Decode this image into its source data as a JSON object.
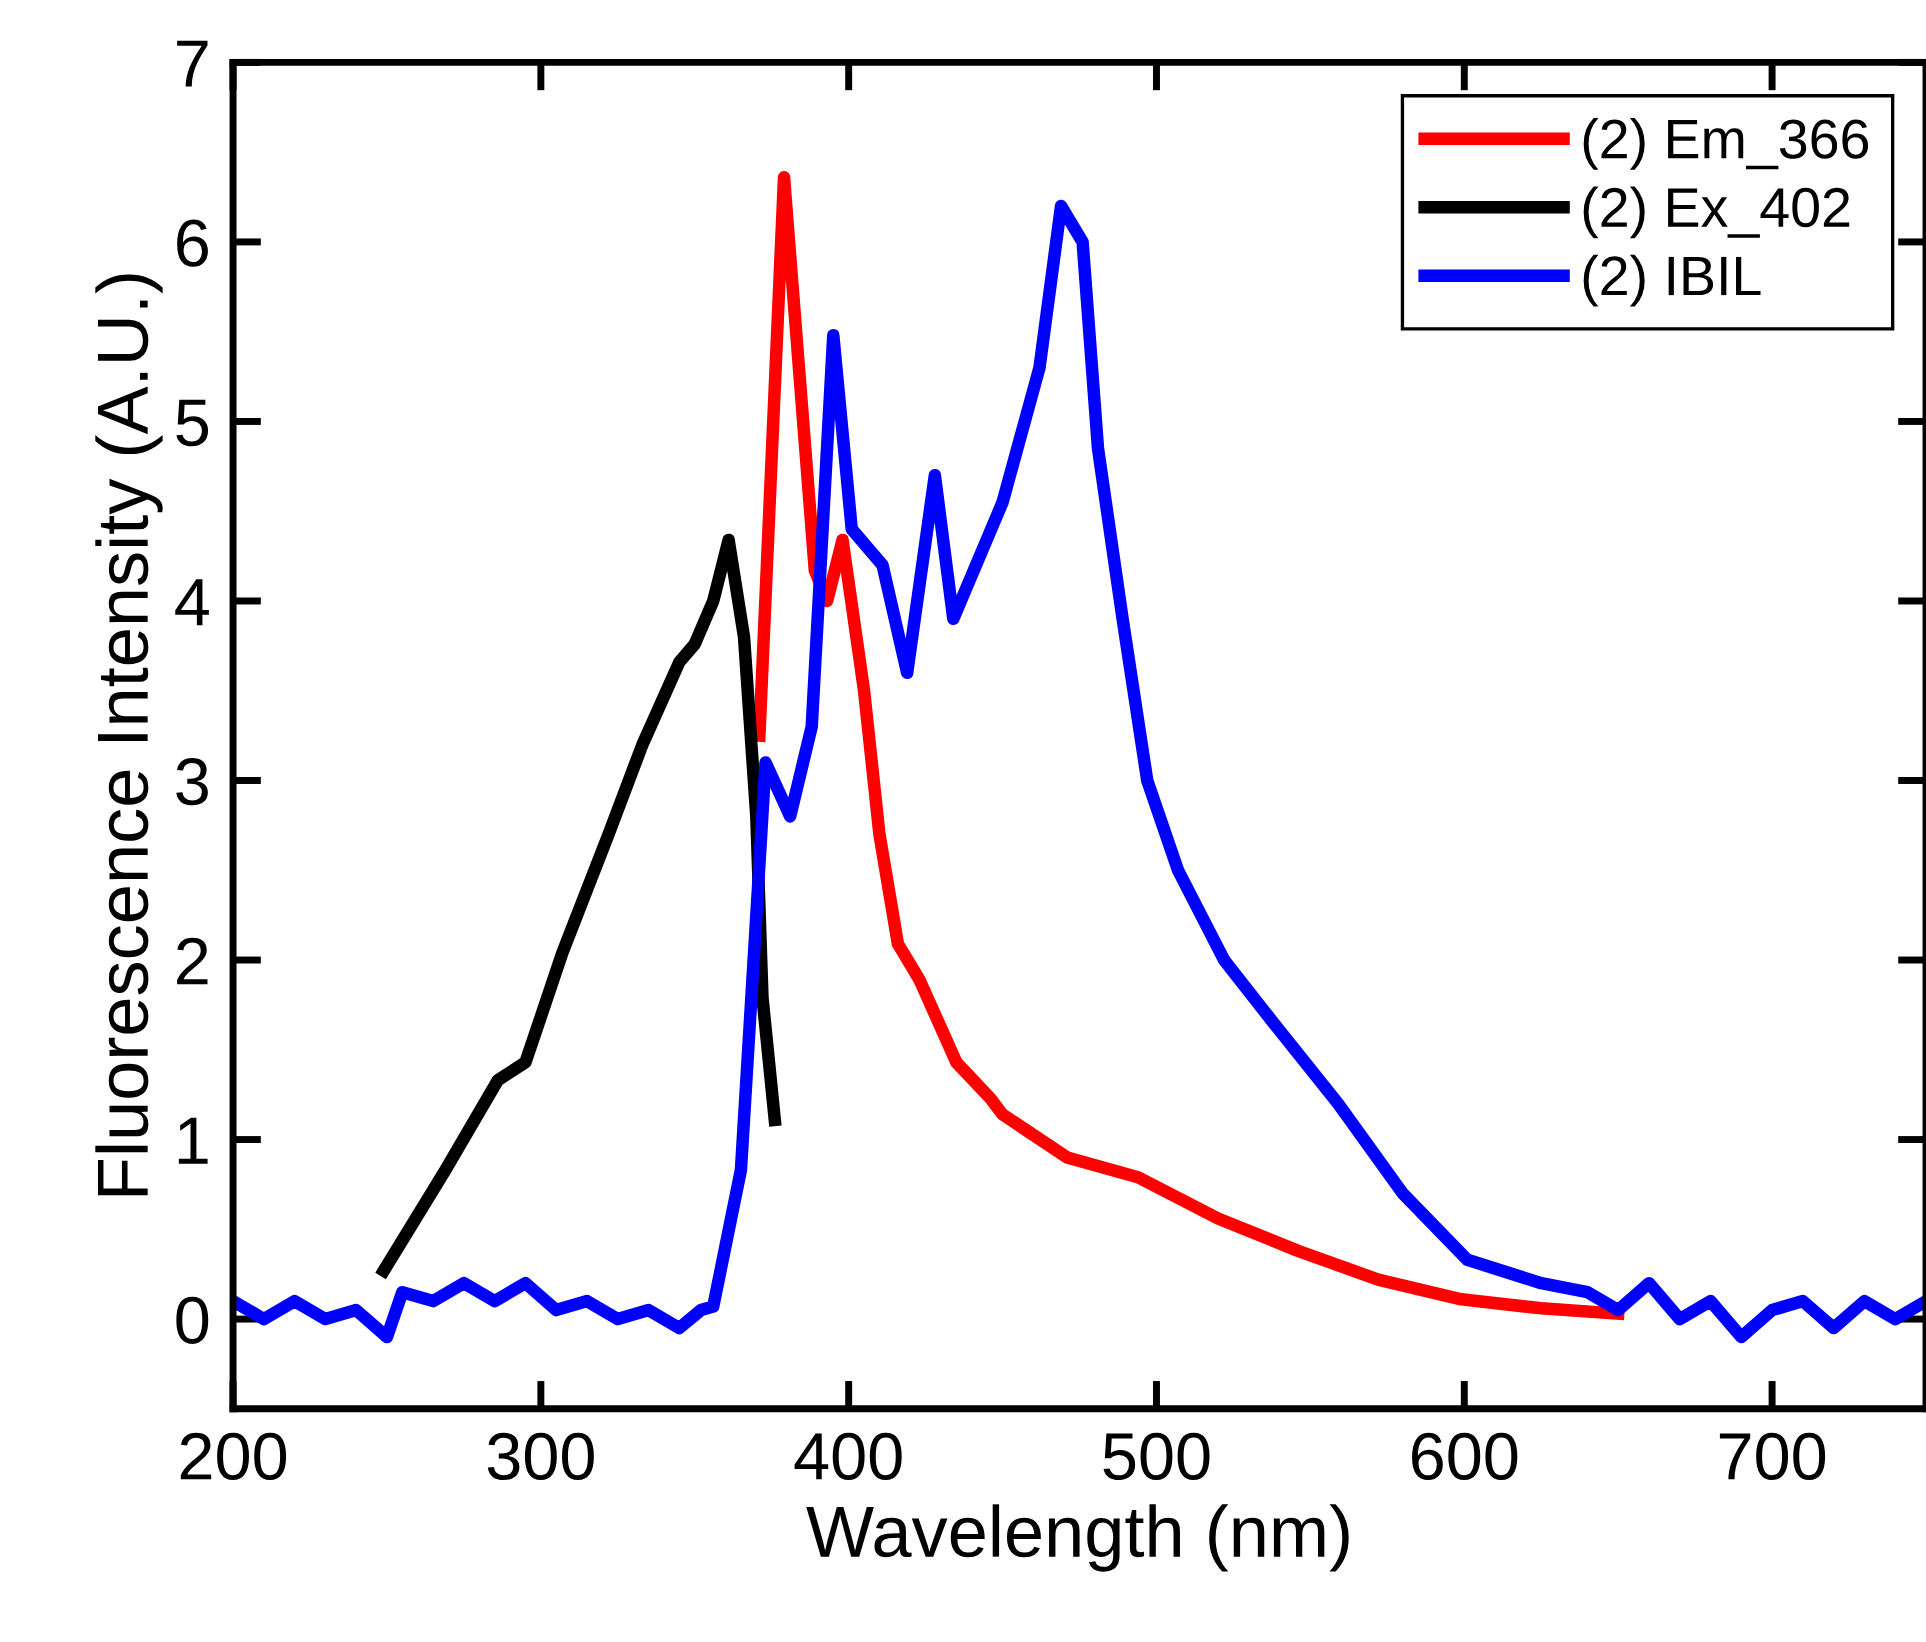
{
  "chart_data": {
    "type": "line",
    "xlabel": "Wavelength (nm)",
    "ylabel": "Fluorescence Intensity (A.U.)",
    "xlim": [
      200,
      750
    ],
    "ylim": [
      -0.5,
      7
    ],
    "xticks": [
      200,
      300,
      400,
      500,
      600,
      700
    ],
    "yticks": [
      0,
      1,
      2,
      3,
      4,
      5,
      6,
      7
    ],
    "legend": "top right",
    "grid": false,
    "line_style": "solid",
    "marker": "none",
    "series": [
      {
        "name": "(2) Em_366",
        "color": "#ff0000",
        "x": [
          371,
          379,
          389,
          393,
          398,
          405,
          410,
          416,
          423,
          435,
          446,
          450,
          471,
          494,
          520,
          546,
          572,
          599,
          625,
          650
        ],
        "values": [
          3.25,
          6.36,
          4.17,
          4.0,
          4.34,
          3.5,
          2.7,
          2.09,
          1.89,
          1.43,
          1.23,
          1.14,
          0.9,
          0.79,
          0.56,
          0.38,
          0.22,
          0.11,
          0.06,
          0.03
        ]
      },
      {
        "name": "(2) Ex_402",
        "color": "#000000",
        "x": [
          249,
          269,
          286,
          295,
          307,
          322,
          333,
          345,
          350,
          356,
          361,
          366,
          370,
          372,
          376
        ],
        "values": [
          0.27,
          0.83,
          1.33,
          1.43,
          2.04,
          2.7,
          3.2,
          3.66,
          3.76,
          4.0,
          4.34,
          3.8,
          2.8,
          1.79,
          1.11
        ]
      },
      {
        "name": "(2) IBIL",
        "color": "#0000ff",
        "x": [
          200,
          210,
          220,
          230,
          240,
          250,
          255,
          265,
          275,
          285,
          295,
          305,
          315,
          325,
          335,
          345,
          352,
          356,
          365,
          373,
          381,
          388,
          395,
          401,
          411,
          419,
          428,
          434,
          450,
          462,
          469,
          476,
          481,
          489,
          497,
          507,
          522,
          538,
          559,
          580,
          601,
          625,
          640,
          650,
          660,
          670,
          680,
          690,
          700,
          710,
          720,
          730,
          740,
          750
        ],
        "values": [
          0.1,
          0.0,
          0.1,
          0.0,
          0.05,
          -0.1,
          0.15,
          0.1,
          0.2,
          0.1,
          0.2,
          0.05,
          0.1,
          0.0,
          0.05,
          -0.05,
          0.05,
          0.07,
          0.83,
          3.1,
          2.8,
          3.3,
          5.48,
          4.4,
          4.2,
          3.6,
          4.7,
          3.9,
          4.55,
          5.3,
          6.2,
          6.0,
          4.85,
          3.9,
          3.0,
          2.5,
          2.0,
          1.65,
          1.2,
          0.7,
          0.33,
          0.2,
          0.15,
          0.05,
          0.2,
          0.0,
          0.1,
          -0.1,
          0.05,
          0.1,
          -0.05,
          0.1,
          0.0,
          0.1
        ]
      }
    ]
  }
}
